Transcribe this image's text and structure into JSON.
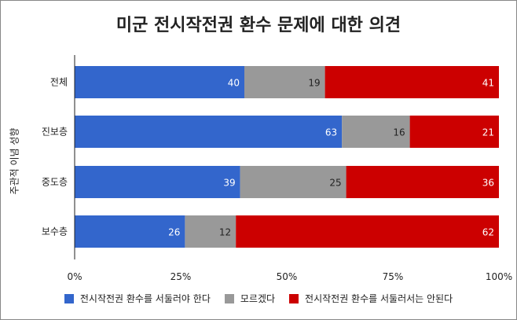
{
  "chart_data": {
    "type": "bar",
    "orientation": "horizontal",
    "stacked": true,
    "title": "미군 전시작전권 환수 문제에 대한 의견",
    "ylabel": "주관적 이념 성향",
    "xlabel": "",
    "categories": [
      "전체",
      "진보층",
      "중도층",
      "보수층"
    ],
    "series": [
      {
        "name": "전시작전권 환수를 서둘러야 한다",
        "color": "#3366cc",
        "values": [
          40,
          63,
          39,
          26
        ]
      },
      {
        "name": "모르겠다",
        "color": "#999999",
        "values": [
          19,
          16,
          25,
          12
        ]
      },
      {
        "name": "전시작전권 환수를 서둘러서는 안된다",
        "color": "#cc0000",
        "values": [
          41,
          21,
          36,
          62
        ]
      }
    ],
    "xlim": [
      0,
      100
    ],
    "xticks": [
      "0%",
      "25%",
      "50%",
      "75%",
      "100%"
    ],
    "legend": "bottom",
    "grid": false
  }
}
